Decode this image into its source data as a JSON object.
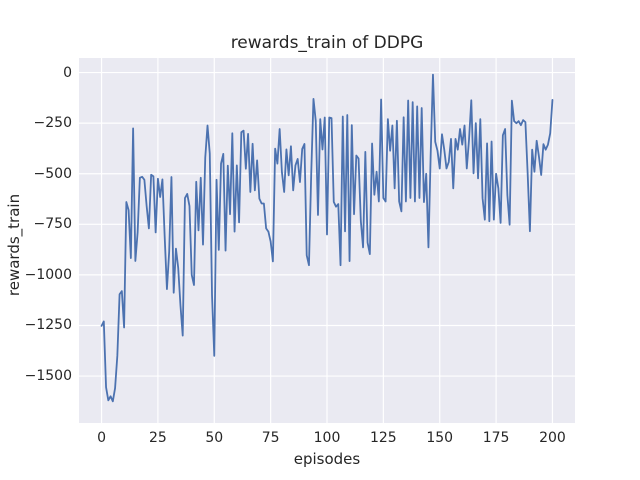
{
  "figure": {
    "title": "rewards_train of DDPG",
    "xlabel": "episodes",
    "ylabel": "rewards_train"
  },
  "colors": {
    "figure_background": "#ffffff",
    "axes_background": "#eaeaf2",
    "grid": "#ffffff",
    "line": "#4c72b0",
    "text": "#262626"
  },
  "chart_data": {
    "type": "line",
    "title": "rewards_train of DDPG",
    "xlabel": "episodes",
    "ylabel": "rewards_train",
    "legend": "none",
    "grid": true,
    "x_start": 0,
    "x_step": 1,
    "x_range": [
      0,
      200
    ],
    "xlim": [
      -10,
      210
    ],
    "ylim": [
      -1732,
      72
    ],
    "xticks": [
      0,
      25,
      50,
      75,
      100,
      125,
      150,
      175,
      200
    ],
    "yticks": [
      0,
      -250,
      -500,
      -750,
      -1000,
      -1250,
      -1500
    ],
    "series_name": "rewards_train",
    "values": [
      -1252,
      -1230,
      -1555,
      -1620,
      -1600,
      -1625,
      -1560,
      -1400,
      -1096,
      -1080,
      -1260,
      -640,
      -680,
      -917,
      -276,
      -931,
      -790,
      -520,
      -515,
      -530,
      -660,
      -770,
      -505,
      -513,
      -790,
      -525,
      -615,
      -528,
      -810,
      -1070,
      -885,
      -516,
      -1088,
      -870,
      -965,
      -1150,
      -1300,
      -620,
      -600,
      -660,
      -1000,
      -1050,
      -540,
      -780,
      -520,
      -850,
      -420,
      -262,
      -400,
      -1100,
      -1400,
      -530,
      -876,
      -450,
      -402,
      -880,
      -460,
      -700,
      -300,
      -786,
      -459,
      -740,
      -295,
      -287,
      -475,
      -303,
      -590,
      -352,
      -582,
      -434,
      -623,
      -647,
      -647,
      -770,
      -786,
      -835,
      -933,
      -376,
      -450,
      -279,
      -492,
      -590,
      -380,
      -508,
      -364,
      -582,
      -459,
      -427,
      -541,
      -378,
      -353,
      -903,
      -952,
      -500,
      -130,
      -238,
      -704,
      -230,
      -380,
      -222,
      -800,
      -222,
      -225,
      -639,
      -663,
      -650,
      -952,
      -217,
      -785,
      -210,
      -932,
      -260,
      -700,
      -410,
      -425,
      -733,
      -864,
      -392,
      -840,
      -897,
      -351,
      -604,
      -490,
      -637,
      -133,
      -620,
      -637,
      -230,
      -386,
      -262,
      -572,
      -238,
      -637,
      -686,
      -221,
      -637,
      -138,
      -620,
      -146,
      -637,
      -167,
      -620,
      -175,
      -640,
      -500,
      -864,
      -400,
      -10,
      -342,
      -386,
      -474,
      -305,
      -380,
      -474,
      -442,
      -328,
      -572,
      -328,
      -381,
      -279,
      -356,
      -262,
      -474,
      -330,
      -137,
      -498,
      -250,
      -523,
      -230,
      -621,
      -727,
      -350,
      -735,
      -341,
      -727,
      -500,
      -572,
      -743,
      -310,
      -279,
      -605,
      -752,
      -139,
      -240,
      -250,
      -240,
      -260,
      -235,
      -245,
      -498,
      -784,
      -381,
      -490,
      -337,
      -415,
      -506,
      -354,
      -381,
      -356,
      -300,
      -135
    ]
  }
}
